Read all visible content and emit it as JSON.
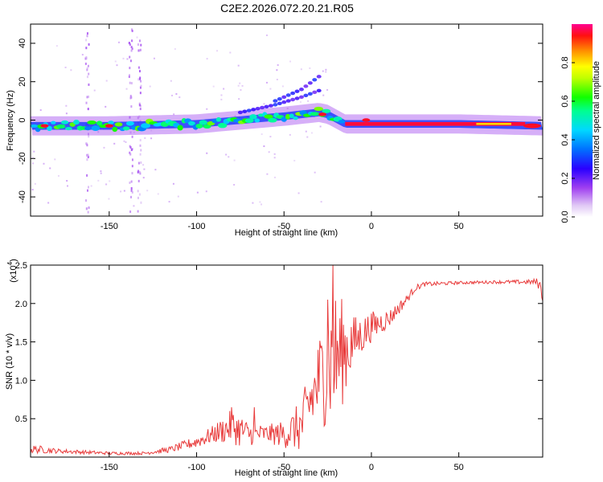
{
  "figure_title": "C2E2.2026.072.20.21.R05",
  "colors": {
    "snr_line": "#e83a3a",
    "frame": "#000000"
  },
  "chart_data": [
    {
      "type": "heatmap",
      "name": "spectrogram",
      "title": "C2E2.2026.072.20.21.R05",
      "xlabel": "Height of straight line (km)",
      "ylabel": "Frequency (Hz)",
      "xlim": [
        -195,
        98
      ],
      "ylim": [
        -50,
        50
      ],
      "xticks": [
        -150,
        -100,
        -50,
        0,
        50
      ],
      "yticks": [
        -40,
        -20,
        0,
        20,
        40
      ],
      "colorbar": {
        "label": "Normalized spectral amplitude",
        "range": [
          0,
          1
        ],
        "ticks": [
          "0.0",
          "0.2",
          "0.4",
          "0.6",
          "0.8"
        ],
        "tick_values": [
          0,
          0.2,
          0.4,
          0.6,
          0.8
        ]
      },
      "ridges": [
        {
          "name": "main-signal",
          "x": [
            -195,
            -150,
            -100,
            -75,
            -50,
            -30,
            -25,
            -15,
            0,
            50,
            98
          ],
          "y": [
            -3,
            -3,
            -2,
            0,
            2,
            4,
            3,
            -2,
            -2,
            -2,
            -3
          ]
        },
        {
          "name": "harmonic-1",
          "x": [
            -75,
            -55,
            -40,
            -28
          ],
          "y": [
            4,
            8,
            12,
            16
          ]
        },
        {
          "name": "harmonic-2",
          "x": [
            -55,
            -40,
            -28
          ],
          "y": [
            10,
            16,
            24
          ]
        }
      ]
    },
    {
      "type": "line",
      "name": "snr",
      "xlabel": "Height of straight line (km)",
      "ylabel": "SNR (10 * v/v)",
      "y_multiplier": "(x10",
      "y_multiplier_exponent": "4",
      "y_multiplier_close": ")",
      "xlim": [
        -195,
        98
      ],
      "ylim": [
        0,
        2.5
      ],
      "xticks": [
        -150,
        -100,
        -50,
        0,
        50
      ],
      "ytick_labels": [
        "0.5",
        "1.0",
        "1.5",
        "2.0",
        "2.5"
      ],
      "ytick_values": [
        0.5,
        1.0,
        1.5,
        2.0,
        2.5
      ],
      "series": [
        {
          "name": "SNR",
          "envelope_x": [
            -195,
            -190,
            -180,
            -150,
            -130,
            -115,
            -100,
            -90,
            -80,
            -75,
            -70,
            -60,
            -50,
            -40,
            -30,
            -25,
            -20,
            -15,
            -10,
            -5,
            0,
            10,
            20,
            25,
            30,
            50,
            70,
            90,
            95,
            98
          ],
          "envelope_mid": [
            0.1,
            0.1,
            0.08,
            0.05,
            0.05,
            0.1,
            0.2,
            0.3,
            0.4,
            0.35,
            0.3,
            0.3,
            0.3,
            0.4,
            1.0,
            1.2,
            1.3,
            1.4,
            1.5,
            1.6,
            1.7,
            1.8,
            2.05,
            2.2,
            2.25,
            2.27,
            2.28,
            2.28,
            2.28,
            2.15
          ],
          "envelope_amp": [
            0.06,
            0.05,
            0.03,
            0.02,
            0.02,
            0.04,
            0.08,
            0.12,
            0.22,
            0.22,
            0.15,
            0.12,
            0.18,
            0.35,
            0.6,
            0.8,
            0.9,
            0.6,
            0.35,
            0.25,
            0.2,
            0.12,
            0.06,
            0.04,
            0.03,
            0.02,
            0.02,
            0.03,
            0.05,
            0.15
          ],
          "peaks": [
            {
              "x": -22,
              "y": 2.5
            },
            {
              "x": -25,
              "y": 2.05
            },
            {
              "x": -35,
              "y": 0.85
            },
            {
              "x": -80,
              "y": 0.65
            },
            {
              "x": -67,
              "y": 0.65
            }
          ]
        }
      ]
    }
  ]
}
